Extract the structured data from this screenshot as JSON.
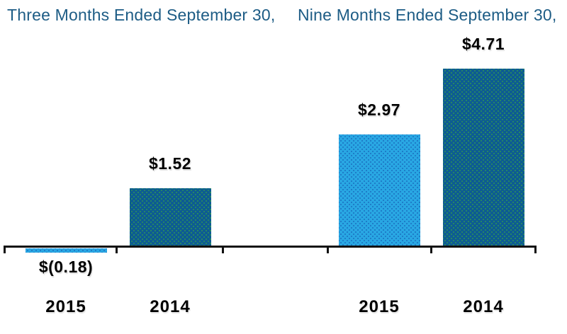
{
  "chart_data": {
    "type": "bar",
    "title": "",
    "xlabel": "",
    "ylabel": "",
    "ylim": [
      -0.3,
      5.2
    ],
    "grid": false,
    "legend": false,
    "groups": [
      {
        "title": "Three Months Ended September 30,",
        "bars": [
          {
            "category": "2015",
            "value": -0.18,
            "label": "$(0.18)",
            "color_key": "light_blue"
          },
          {
            "category": "2014",
            "value": 1.52,
            "label": "$1.52",
            "color_key": "dark_blue"
          }
        ]
      },
      {
        "title": "Nine Months Ended September 30,",
        "bars": [
          {
            "category": "2015",
            "value": 2.97,
            "label": "$2.97",
            "color_key": "light_blue"
          },
          {
            "category": "2014",
            "value": 4.71,
            "label": "$4.71",
            "color_key": "dark_blue"
          }
        ]
      }
    ],
    "colors": {
      "light_blue": "#29A7E3",
      "light_blue_dot": "#1A6FC0",
      "dark_blue": "#0D5C92",
      "dark_blue_dot": "#2E9457",
      "header_text": "#1D5C85",
      "axis": "#111111",
      "label_text": "#000000"
    }
  }
}
